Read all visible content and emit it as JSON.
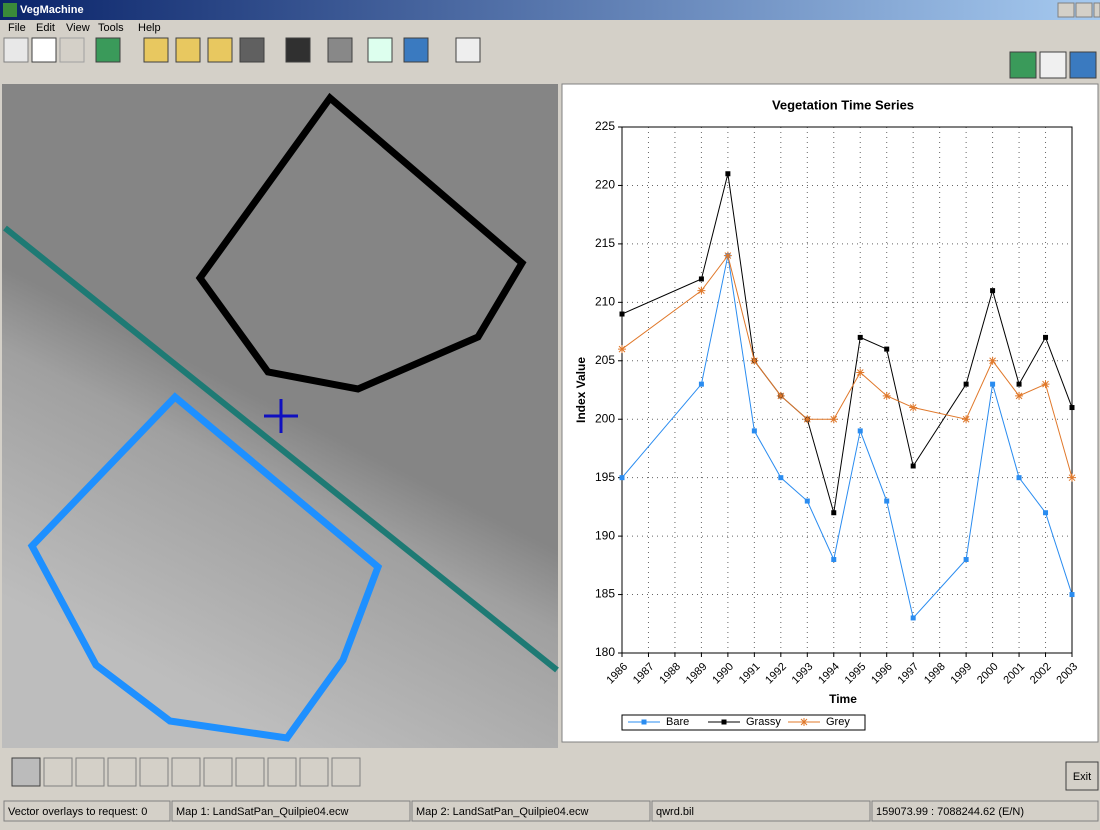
{
  "window": {
    "title": "VegMachine",
    "menu": [
      "File",
      "Edit",
      "View",
      "Tools",
      "Help"
    ],
    "exit_button": "Exit",
    "status": [
      "Vector overlays to request: 0",
      "Map 1: LandSatPan_Quilpie04.ecw",
      "Map 2: LandSatPan_Quilpie04.ecw",
      "qwrd.bil",
      "159073.99 : 7088244.62 (E/N)"
    ]
  },
  "chart_data": {
    "type": "line",
    "title": "Vegetation Time Series",
    "x_label": "Time",
    "y_label": "Index Value",
    "x": [
      1986,
      1989,
      1990,
      1991,
      1992,
      1993,
      1994,
      1995,
      1996,
      1997,
      1999,
      2000,
      2001,
      2002,
      2003
    ],
    "series": [
      {
        "name": "Bare",
        "color": "#2a8cf0",
        "marker": "square",
        "values": [
          195,
          203,
          214,
          199,
          195,
          193,
          188,
          199,
          193,
          183,
          188,
          203,
          195,
          192,
          185
        ]
      },
      {
        "name": "Grassy",
        "color": "#000000",
        "marker": "square",
        "values": [
          209,
          212,
          221,
          205,
          202,
          200,
          192,
          207,
          206,
          196,
          203,
          211,
          203,
          207,
          201
        ]
      },
      {
        "name": "Grey",
        "color": "#e0782a",
        "marker": "star",
        "values": [
          206,
          211,
          214,
          205,
          202,
          200,
          200,
          204,
          202,
          201,
          200,
          205,
          202,
          203,
          195
        ]
      }
    ],
    "xlim": [
      1986,
      2003
    ],
    "xticks": [
      1986,
      1987,
      1988,
      1989,
      1990,
      1991,
      1992,
      1993,
      1994,
      1995,
      1996,
      1997,
      1998,
      1999,
      2000,
      2001,
      2002,
      2003
    ],
    "ylim": [
      180,
      225
    ],
    "yticks": [
      180,
      185,
      190,
      195,
      200,
      205,
      210,
      215,
      220,
      225
    ],
    "grid": true,
    "legend": "bottom-left"
  }
}
